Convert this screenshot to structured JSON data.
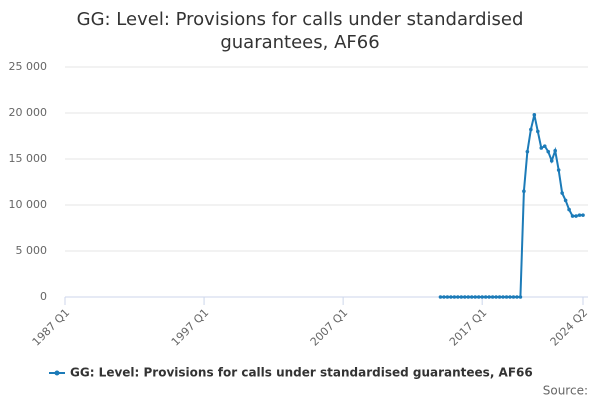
{
  "chart_data": {
    "type": "line",
    "title": "GG: Level: Provisions for calls under standardised guarantees, AF66",
    "source": "Source:",
    "categories": [
      "1987 Q1",
      "1987 Q2",
      "1987 Q3",
      "1987 Q4",
      "1988 Q1",
      "1988 Q2",
      "1988 Q3",
      "1988 Q4",
      "1989 Q1",
      "1989 Q2",
      "1989 Q3",
      "1989 Q4",
      "1990 Q1",
      "1990 Q2",
      "1990 Q3",
      "1990 Q4",
      "1991 Q1",
      "1991 Q2",
      "1991 Q3",
      "1991 Q4",
      "1992 Q1",
      "1992 Q2",
      "1992 Q3",
      "1992 Q4",
      "1993 Q1",
      "1993 Q2",
      "1993 Q3",
      "1993 Q4",
      "1994 Q1",
      "1994 Q2",
      "1994 Q3",
      "1994 Q4",
      "1995 Q1",
      "1995 Q2",
      "1995 Q3",
      "1995 Q4",
      "1996 Q1",
      "1996 Q2",
      "1996 Q3",
      "1996 Q4",
      "1997 Q1",
      "1997 Q2",
      "1997 Q3",
      "1997 Q4",
      "1998 Q1",
      "1998 Q2",
      "1998 Q3",
      "1998 Q4",
      "1999 Q1",
      "1999 Q2",
      "1999 Q3",
      "1999 Q4",
      "2000 Q1",
      "2000 Q2",
      "2000 Q3",
      "2000 Q4",
      "2001 Q1",
      "2001 Q2",
      "2001 Q3",
      "2001 Q4",
      "2002 Q1",
      "2002 Q2",
      "2002 Q3",
      "2002 Q4",
      "2003 Q1",
      "2003 Q2",
      "2003 Q3",
      "2003 Q4",
      "2004 Q1",
      "2004 Q2",
      "2004 Q3",
      "2004 Q4",
      "2005 Q1",
      "2005 Q2",
      "2005 Q3",
      "2005 Q4",
      "2006 Q1",
      "2006 Q2",
      "2006 Q3",
      "2006 Q4",
      "2007 Q1",
      "2007 Q2",
      "2007 Q3",
      "2007 Q4",
      "2008 Q1",
      "2008 Q2",
      "2008 Q3",
      "2008 Q4",
      "2009 Q1",
      "2009 Q2",
      "2009 Q3",
      "2009 Q4",
      "2010 Q1",
      "2010 Q2",
      "2010 Q3",
      "2010 Q4",
      "2011 Q1",
      "2011 Q2",
      "2011 Q3",
      "2011 Q4",
      "2012 Q1",
      "2012 Q2",
      "2012 Q3",
      "2012 Q4",
      "2013 Q1",
      "2013 Q2",
      "2013 Q3",
      "2013 Q4",
      "2014 Q1",
      "2014 Q2",
      "2014 Q3",
      "2014 Q4",
      "2015 Q1",
      "2015 Q2",
      "2015 Q3",
      "2015 Q4",
      "2016 Q1",
      "2016 Q2",
      "2016 Q3",
      "2016 Q4",
      "2017 Q1",
      "2017 Q2",
      "2017 Q3",
      "2017 Q4",
      "2018 Q1",
      "2018 Q2",
      "2018 Q3",
      "2018 Q4",
      "2019 Q1",
      "2019 Q2",
      "2019 Q3",
      "2019 Q4",
      "2020 Q1",
      "2020 Q2",
      "2020 Q3",
      "2020 Q4",
      "2021 Q1",
      "2021 Q2",
      "2021 Q3",
      "2021 Q4",
      "2022 Q1",
      "2022 Q2",
      "2022 Q3",
      "2022 Q4",
      "2023 Q1",
      "2023 Q2",
      "2023 Q3",
      "2023 Q4",
      "2024 Q1",
      "2024 Q2"
    ],
    "series": [
      {
        "name": "GG: Level: Provisions for calls under standardised guarantees, AF66",
        "color": "#1c7bb8",
        "values": [
          null,
          null,
          null,
          null,
          null,
          null,
          null,
          null,
          null,
          null,
          null,
          null,
          null,
          null,
          null,
          null,
          null,
          null,
          null,
          null,
          null,
          null,
          null,
          null,
          null,
          null,
          null,
          null,
          null,
          null,
          null,
          null,
          null,
          null,
          null,
          null,
          null,
          null,
          null,
          null,
          null,
          null,
          null,
          null,
          null,
          null,
          null,
          null,
          null,
          null,
          null,
          null,
          null,
          null,
          null,
          null,
          null,
          null,
          null,
          null,
          null,
          null,
          null,
          null,
          null,
          null,
          null,
          null,
          null,
          null,
          null,
          null,
          null,
          null,
          null,
          null,
          null,
          null,
          null,
          null,
          null,
          null,
          null,
          null,
          null,
          null,
          null,
          null,
          null,
          null,
          null,
          null,
          null,
          null,
          null,
          null,
          null,
          null,
          null,
          null,
          null,
          null,
          null,
          null,
          null,
          null,
          null,
          null,
          0,
          0,
          0,
          0,
          0,
          0,
          0,
          0,
          0,
          0,
          0,
          0,
          0,
          0,
          0,
          0,
          0,
          0,
          0,
          0,
          0,
          0,
          0,
          0,
          11500,
          15800,
          18200,
          19800,
          18000,
          16200,
          16400,
          15800,
          14800,
          15900,
          13800,
          11300,
          10500,
          9500,
          8800,
          8800,
          8900,
          8900
        ]
      }
    ],
    "ylim": [
      0,
      25000
    ],
    "yticks": [
      0,
      {
        "value": 5000,
        "label": "5 000"
      },
      {
        "value": 10000,
        "label": "10 000"
      },
      {
        "value": 15000,
        "label": "15 000"
      },
      {
        "value": 20000,
        "label": "20 000"
      },
      {
        "value": 25000,
        "label": "25 000"
      }
    ],
    "grid": true,
    "legend": "bottom"
  }
}
